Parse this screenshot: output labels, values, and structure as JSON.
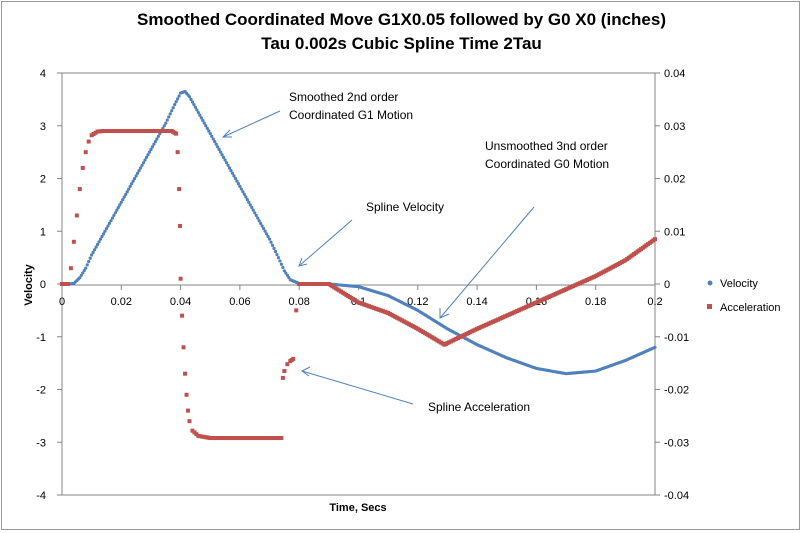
{
  "chart_data": {
    "type": "scatter",
    "title": "Smoothed Coordinated Move G1X0.05 followed by G0 X0 (inches)",
    "subtitle": "Tau 0.002s Cubic Spline Time 2Tau",
    "xlabel": "Time, Secs",
    "ylabel": "Velocity",
    "xlim": [
      0,
      0.2
    ],
    "ylim_left": [
      -4,
      4
    ],
    "ylim_right": [
      -0.04,
      0.04
    ],
    "x_ticks": [
      "0",
      "0.02",
      "0.04",
      "0.06",
      "0.08",
      "0.1",
      "0.12",
      "0.14",
      "0.16",
      "0.18",
      "0.2"
    ],
    "y_ticks_left": [
      "4",
      "3",
      "2",
      "1",
      "0",
      "-1",
      "-2",
      "-3",
      "-4"
    ],
    "y_ticks_right": [
      "0.04",
      "0.03",
      "0.02",
      "0.01",
      "0",
      "-0.01",
      "-0.02",
      "-0.03",
      "-0.04"
    ],
    "legend_position": "right",
    "series": [
      {
        "name": "Velocity",
        "axis": "left",
        "color": "#4f81bd",
        "points": [
          [
            0,
            0
          ],
          [
            0.002,
            0
          ],
          [
            0.004,
            0.01
          ],
          [
            0.006,
            0.12
          ],
          [
            0.008,
            0.3
          ],
          [
            0.01,
            0.55
          ],
          [
            0.015,
            1.05
          ],
          [
            0.02,
            1.55
          ],
          [
            0.025,
            2.05
          ],
          [
            0.03,
            2.55
          ],
          [
            0.035,
            3.05
          ],
          [
            0.038,
            3.4
          ],
          [
            0.04,
            3.62
          ],
          [
            0.0415,
            3.65
          ],
          [
            0.043,
            3.55
          ],
          [
            0.045,
            3.35
          ],
          [
            0.05,
            2.85
          ],
          [
            0.055,
            2.35
          ],
          [
            0.06,
            1.85
          ],
          [
            0.065,
            1.35
          ],
          [
            0.07,
            0.85
          ],
          [
            0.073,
            0.5
          ],
          [
            0.075,
            0.25
          ],
          [
            0.077,
            0.08
          ],
          [
            0.08,
            0.01
          ],
          [
            0.085,
            0
          ],
          [
            0.09,
            0
          ],
          [
            0.1,
            -0.05
          ],
          [
            0.11,
            -0.22
          ],
          [
            0.12,
            -0.5
          ],
          [
            0.13,
            -0.85
          ],
          [
            0.14,
            -1.15
          ],
          [
            0.15,
            -1.4
          ],
          [
            0.16,
            -1.6
          ],
          [
            0.17,
            -1.7
          ],
          [
            0.18,
            -1.65
          ],
          [
            0.19,
            -1.45
          ],
          [
            0.2,
            -1.2
          ]
        ]
      },
      {
        "name": "Acceleration",
        "axis": "right",
        "color": "#c0504d",
        "points": [
          [
            0,
            0
          ],
          [
            0.001,
            0
          ],
          [
            0.002,
            0
          ],
          [
            0.003,
            0.003
          ],
          [
            0.004,
            0.008
          ],
          [
            0.005,
            0.013
          ],
          [
            0.006,
            0.018
          ],
          [
            0.007,
            0.022
          ],
          [
            0.008,
            0.025
          ],
          [
            0.009,
            0.027
          ],
          [
            0.01,
            0.0282
          ],
          [
            0.012,
            0.0289
          ],
          [
            0.014,
            0.029
          ],
          [
            0.02,
            0.029
          ],
          [
            0.03,
            0.029
          ],
          [
            0.037,
            0.029
          ],
          [
            0.0385,
            0.0285
          ],
          [
            0.039,
            0.025
          ],
          [
            0.0395,
            0.018
          ],
          [
            0.0398,
            0.011
          ],
          [
            0.04,
            0.001
          ],
          [
            0.0405,
            -0.006
          ],
          [
            0.041,
            -0.012
          ],
          [
            0.0415,
            -0.017
          ],
          [
            0.042,
            -0.021
          ],
          [
            0.0425,
            -0.024
          ],
          [
            0.043,
            -0.026
          ],
          [
            0.044,
            -0.0278
          ],
          [
            0.046,
            -0.0288
          ],
          [
            0.05,
            -0.0292
          ],
          [
            0.06,
            -0.0292
          ],
          [
            0.07,
            -0.0292
          ],
          [
            0.074,
            -0.0292
          ],
          [
            0.0745,
            -0.0178
          ],
          [
            0.075,
            -0.0165
          ],
          [
            0.076,
            -0.0152
          ],
          [
            0.077,
            -0.0146
          ],
          [
            0.078,
            -0.0142
          ],
          [
            0.079,
            -0.005
          ],
          [
            0.08,
            0
          ],
          [
            0.085,
            0
          ],
          [
            0.09,
            0
          ],
          [
            0.1,
            -0.0035
          ],
          [
            0.11,
            -0.0055
          ],
          [
            0.12,
            -0.0085
          ],
          [
            0.129,
            -0.0115
          ],
          [
            0.13,
            -0.0112
          ],
          [
            0.14,
            -0.0085
          ],
          [
            0.15,
            -0.006
          ],
          [
            0.16,
            -0.0035
          ],
          [
            0.17,
            -0.001
          ],
          [
            0.18,
            0.0015
          ],
          [
            0.19,
            0.0045
          ],
          [
            0.2,
            0.0085
          ]
        ]
      }
    ],
    "annotations": [
      {
        "text": "Smoothed 2nd order",
        "line2": "Coordinated G1 Motion"
      },
      {
        "text": "Unsmoothed 3nd order",
        "line2": "Coordinated G0 Motion"
      },
      {
        "text": "Spline Velocity"
      },
      {
        "text": "Spline Acceleration"
      }
    ]
  }
}
